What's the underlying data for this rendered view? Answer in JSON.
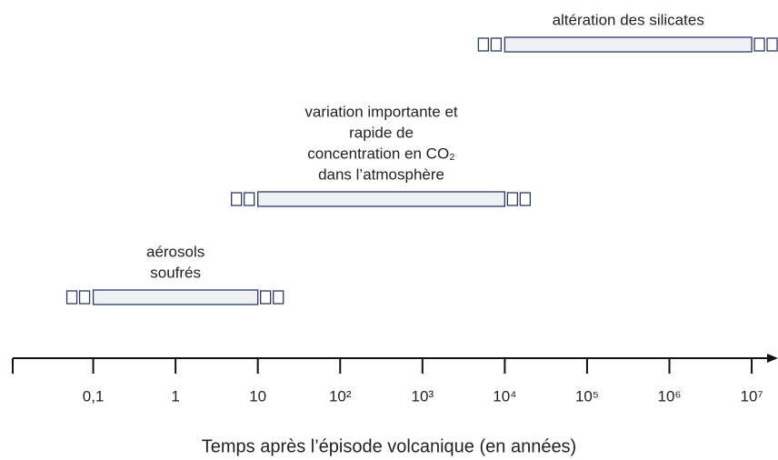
{
  "chart_data": {
    "type": "timeline",
    "bars": [
      {
        "label": [
          "aérosols",
          "soufrés"
        ],
        "start": 0.1,
        "end": 10
      },
      {
        "label": [
          "variation importante et",
          "rapide de",
          "concentration en CO₂",
          "dans l’atmosphère"
        ],
        "start": 10,
        "end": 10000
      },
      {
        "label": [
          "altération des silicates"
        ],
        "start": 10000,
        "end": 10000000
      }
    ],
    "log_x": true,
    "xlim": [
      0.01,
      15000000
    ],
    "xticks": [
      {
        "value": 0.1,
        "label": "0,1"
      },
      1,
      10,
      {
        "value": 100,
        "label": "10²"
      },
      {
        "value": 1000,
        "label": "10³"
      },
      {
        "value": 10000,
        "label": "10⁴"
      },
      {
        "value": 100000,
        "label": "10⁵"
      },
      {
        "value": 1000000,
        "label": "10⁶"
      },
      {
        "value": 10000000,
        "label": "10⁷"
      }
    ],
    "xlabel": "Temps après l’épisode volcanique (en années)",
    "color": "#eef0f4",
    "edge_color": "#2b3a66"
  }
}
